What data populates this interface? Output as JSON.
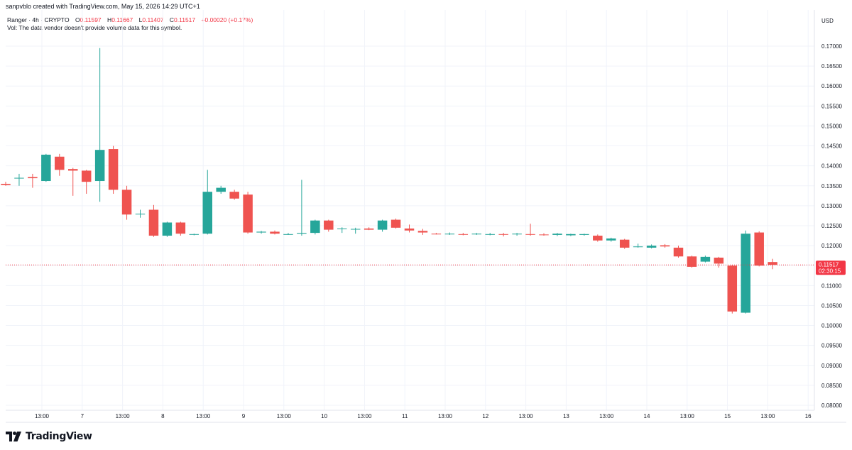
{
  "header": {
    "credit": "sanpvblo created with TradingView.com, May 15, 2026 14:29 UTC+1",
    "symbol": "Ranger · 4h · CRYPTO",
    "o_label": "O",
    "o_value": "0.11597",
    "h_label": "H",
    "h_value": "0.11667",
    "l_label": "L",
    "l_value": "0.11407",
    "c_label": "C",
    "c_value": "0.11517",
    "change": "+0.00020 (+0.17%)",
    "vol_note": "Vol: The data vendor doesn't provide volume data for this symbol."
  },
  "price_tag": {
    "price": "0.11517",
    "countdown": "02:30:15"
  },
  "brand": {
    "name": "TradingView"
  },
  "colors": {
    "up": "#26a69a",
    "down": "#ef5350",
    "grid": "#f0f3fa",
    "text": "#131722",
    "last": "#f23645"
  },
  "chart_data": {
    "type": "candlestick",
    "currency": "USD",
    "ylim": [
      0.0775,
      0.1735
    ],
    "yticks": [
      "0.08000",
      "0.08500",
      "0.09000",
      "0.09500",
      "0.10000",
      "0.10500",
      "0.11000",
      "0.11500",
      "0.12000",
      "0.12500",
      "0.13000",
      "0.13500",
      "0.14000",
      "0.14500",
      "0.15000",
      "0.15500",
      "0.16000",
      "0.16500",
      "0.17000"
    ],
    "xticks": [
      "13:00",
      "7",
      "13:00",
      "8",
      "13:00",
      "9",
      "13:00",
      "10",
      "13:00",
      "11",
      "13:00",
      "12",
      "13:00",
      "13",
      "13:00",
      "14",
      "13:00",
      "15",
      "13:00",
      "16"
    ],
    "last_price": 0.11517,
    "candles": [
      {
        "o": 0.1355,
        "h": 0.136,
        "l": 0.135,
        "c": 0.1352
      },
      {
        "o": 0.137,
        "h": 0.138,
        "l": 0.135,
        "c": 0.137
      },
      {
        "o": 0.1372,
        "h": 0.138,
        "l": 0.1345,
        "c": 0.1369
      },
      {
        "o": 0.1362,
        "h": 0.143,
        "l": 0.136,
        "c": 0.1428
      },
      {
        "o": 0.1423,
        "h": 0.143,
        "l": 0.1375,
        "c": 0.139
      },
      {
        "o": 0.1392,
        "h": 0.1395,
        "l": 0.1325,
        "c": 0.1388
      },
      {
        "o": 0.1388,
        "h": 0.139,
        "l": 0.133,
        "c": 0.136
      },
      {
        "o": 0.1362,
        "h": 0.1695,
        "l": 0.131,
        "c": 0.144
      },
      {
        "o": 0.1442,
        "h": 0.145,
        "l": 0.133,
        "c": 0.134
      },
      {
        "o": 0.134,
        "h": 0.135,
        "l": 0.1265,
        "c": 0.1278
      },
      {
        "o": 0.128,
        "h": 0.129,
        "l": 0.127,
        "c": 0.128
      },
      {
        "o": 0.129,
        "h": 0.1302,
        "l": 0.1222,
        "c": 0.1225
      },
      {
        "o": 0.1225,
        "h": 0.126,
        "l": 0.1222,
        "c": 0.1258
      },
      {
        "o": 0.1258,
        "h": 0.126,
        "l": 0.1225,
        "c": 0.123
      },
      {
        "o": 0.1228,
        "h": 0.123,
        "l": 0.1226,
        "c": 0.1229
      },
      {
        "o": 0.123,
        "h": 0.139,
        "l": 0.1228,
        "c": 0.1335
      },
      {
        "o": 0.1335,
        "h": 0.135,
        "l": 0.133,
        "c": 0.1345
      },
      {
        "o": 0.1335,
        "h": 0.134,
        "l": 0.1315,
        "c": 0.1318
      },
      {
        "o": 0.1328,
        "h": 0.1335,
        "l": 0.123,
        "c": 0.1233
      },
      {
        "o": 0.1233,
        "h": 0.1237,
        "l": 0.123,
        "c": 0.1235
      },
      {
        "o": 0.1235,
        "h": 0.1238,
        "l": 0.1228,
        "c": 0.123
      },
      {
        "o": 0.1229,
        "h": 0.1232,
        "l": 0.1227,
        "c": 0.1229
      },
      {
        "o": 0.123,
        "h": 0.1365,
        "l": 0.1225,
        "c": 0.1232
      },
      {
        "o": 0.1232,
        "h": 0.1265,
        "l": 0.1228,
        "c": 0.1263
      },
      {
        "o": 0.1263,
        "h": 0.1265,
        "l": 0.1235,
        "c": 0.124
      },
      {
        "o": 0.1243,
        "h": 0.1246,
        "l": 0.1232,
        "c": 0.1243
      },
      {
        "o": 0.1242,
        "h": 0.1245,
        "l": 0.123,
        "c": 0.1242
      },
      {
        "o": 0.1243,
        "h": 0.1246,
        "l": 0.1239,
        "c": 0.124
      },
      {
        "o": 0.124,
        "h": 0.1265,
        "l": 0.1235,
        "c": 0.1263
      },
      {
        "o": 0.1265,
        "h": 0.1268,
        "l": 0.1243,
        "c": 0.1245
      },
      {
        "o": 0.1243,
        "h": 0.1253,
        "l": 0.1233,
        "c": 0.1238
      },
      {
        "o": 0.1237,
        "h": 0.1242,
        "l": 0.1227,
        "c": 0.1233
      },
      {
        "o": 0.123,
        "h": 0.1232,
        "l": 0.1228,
        "c": 0.1229
      },
      {
        "o": 0.123,
        "h": 0.1233,
        "l": 0.1227,
        "c": 0.123
      },
      {
        "o": 0.1229,
        "h": 0.1232,
        "l": 0.1226,
        "c": 0.1228
      },
      {
        "o": 0.123,
        "h": 0.1232,
        "l": 0.1227,
        "c": 0.123
      },
      {
        "o": 0.1229,
        "h": 0.1232,
        "l": 0.1226,
        "c": 0.1229
      },
      {
        "o": 0.1229,
        "h": 0.1232,
        "l": 0.1223,
        "c": 0.1228
      },
      {
        "o": 0.1229,
        "h": 0.1232,
        "l": 0.1225,
        "c": 0.123
      },
      {
        "o": 0.1229,
        "h": 0.1255,
        "l": 0.1225,
        "c": 0.1228
      },
      {
        "o": 0.1228,
        "h": 0.1231,
        "l": 0.1225,
        "c": 0.1227
      },
      {
        "o": 0.1227,
        "h": 0.1232,
        "l": 0.1224,
        "c": 0.123
      },
      {
        "o": 0.1226,
        "h": 0.123,
        "l": 0.1224,
        "c": 0.1229
      },
      {
        "o": 0.1227,
        "h": 0.123,
        "l": 0.1225,
        "c": 0.1229
      },
      {
        "o": 0.1225,
        "h": 0.1228,
        "l": 0.121,
        "c": 0.1213
      },
      {
        "o": 0.1213,
        "h": 0.122,
        "l": 0.121,
        "c": 0.1218
      },
      {
        "o": 0.1215,
        "h": 0.1217,
        "l": 0.1192,
        "c": 0.1195
      },
      {
        "o": 0.1198,
        "h": 0.1205,
        "l": 0.1195,
        "c": 0.1198
      },
      {
        "o": 0.1195,
        "h": 0.1203,
        "l": 0.1193,
        "c": 0.12
      },
      {
        "o": 0.1201,
        "h": 0.1204,
        "l": 0.1195,
        "c": 0.1198
      },
      {
        "o": 0.1195,
        "h": 0.12,
        "l": 0.117,
        "c": 0.1173
      },
      {
        "o": 0.1173,
        "h": 0.1175,
        "l": 0.1145,
        "c": 0.1147
      },
      {
        "o": 0.116,
        "h": 0.1175,
        "l": 0.1158,
        "c": 0.1172
      },
      {
        "o": 0.117,
        "h": 0.1172,
        "l": 0.1145,
        "c": 0.1155
      },
      {
        "o": 0.115,
        "h": 0.1152,
        "l": 0.103,
        "c": 0.1035
      },
      {
        "o": 0.1032,
        "h": 0.1238,
        "l": 0.103,
        "c": 0.123
      },
      {
        "o": 0.1233,
        "h": 0.1236,
        "l": 0.1148,
        "c": 0.115
      },
      {
        "o": 0.1159,
        "h": 0.1167,
        "l": 0.1141,
        "c": 0.1152
      }
    ]
  }
}
